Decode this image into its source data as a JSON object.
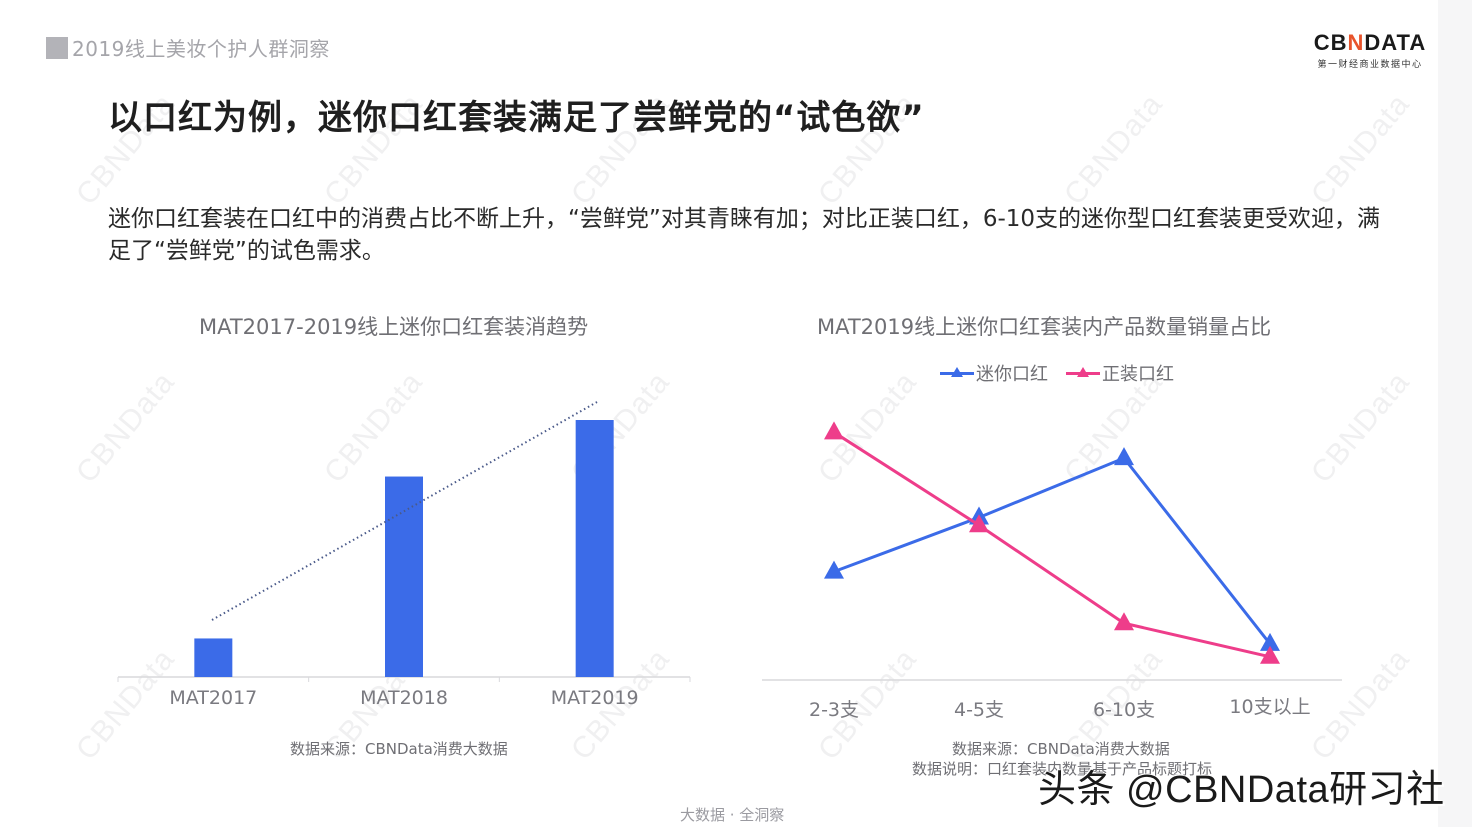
{
  "header": {
    "section_tag": "2019线上美妆个护人群洞察",
    "logo": {
      "brand_left": "CB",
      "brand_accent": "N",
      "brand_right": "DATA",
      "subtitle": "第一财经商业数据中心"
    }
  },
  "title": "以口红为例，迷你口红套装满足了尝鲜党的“试色欲”",
  "description": "迷你口红套装在口红中的消费占比不断上升，“尝鲜党”对其青睐有加；对比正装口红，6-10支的迷你型口红套装更受欢迎，满足了“尝鲜党”的试色需求。",
  "left_chart": {
    "title": "MAT2017-2019线上迷你口红套装消趋势",
    "source": "数据来源：CBNData消费大数据"
  },
  "right_chart": {
    "title": "MAT2019线上迷你口红套装内产品数量销量占比",
    "legend": [
      "迷你口红",
      "正装口红"
    ],
    "source": "数据来源：CBNData消费大数据",
    "note": "数据说明：口红套装内数量基于产品标题打标"
  },
  "footer": "大数据 · 全洞察",
  "overlay_watermark": "头条 @CBNData研习社",
  "watermark_text": "CBNData",
  "colors": {
    "bar": "#3b6be8",
    "mini_lipstick": "#3b6be8",
    "full_lipstick": "#ee3d8a",
    "trendline": "#4a5a8a",
    "axis": "#d9d9dc"
  },
  "chart_data": [
    {
      "type": "bar",
      "title": "MAT2017-2019线上迷你口红套装消趋势",
      "categories": [
        "MAT2017",
        "MAT2018",
        "MAT2019"
      ],
      "values": [
        15,
        78,
        100
      ],
      "xlabel": "",
      "ylabel": "",
      "ylim": [
        0,
        100
      ],
      "value_scale": "relative index (no y-axis shown)",
      "trendline": {
        "style": "dotted",
        "direction": "increasing"
      },
      "grid": false,
      "legend": null
    },
    {
      "type": "line",
      "title": "MAT2019线上迷你口红套装内产品数量销量占比",
      "categories": [
        "2-3支",
        "4-5支",
        "6-10支",
        "10支以上"
      ],
      "series": [
        {
          "name": "迷你口红",
          "color": "#3b6be8",
          "marker": "triangle",
          "values": [
            42,
            63,
            86,
            14
          ]
        },
        {
          "name": "正装口红",
          "color": "#ee3d8a",
          "marker": "triangle",
          "values": [
            96,
            60,
            22,
            9
          ]
        }
      ],
      "ylim": [
        0,
        100
      ],
      "value_scale": "relative (no y-axis shown)",
      "grid": false,
      "legend_position": "top"
    }
  ]
}
